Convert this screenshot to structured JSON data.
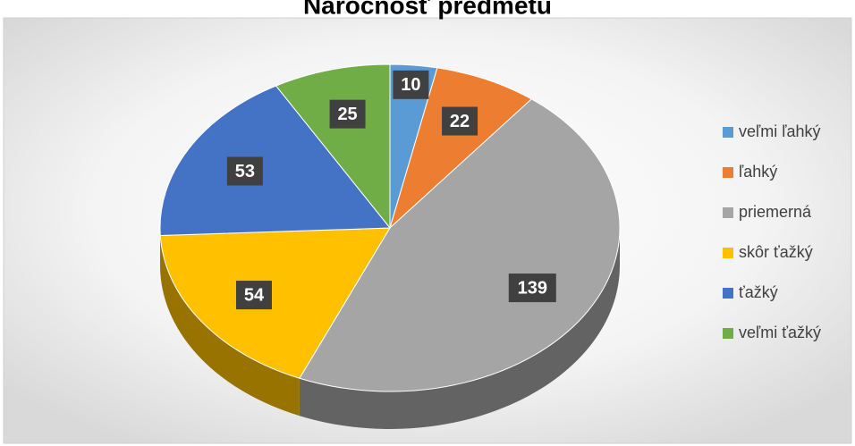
{
  "chart_data": {
    "type": "pie",
    "title": "Náročnosť predmetu",
    "categories": [
      "veľmi ľahký",
      "ľahký",
      "priemerná",
      "skôr ťažký",
      "ťažký",
      "veľmi ťažký"
    ],
    "values": [
      10,
      22,
      139,
      54,
      53,
      25
    ],
    "colors": [
      "#5b9bd5",
      "#ed7d31",
      "#a5a5a5",
      "#ffc000",
      "#4472c4",
      "#70ad47"
    ],
    "legend": "right"
  }
}
